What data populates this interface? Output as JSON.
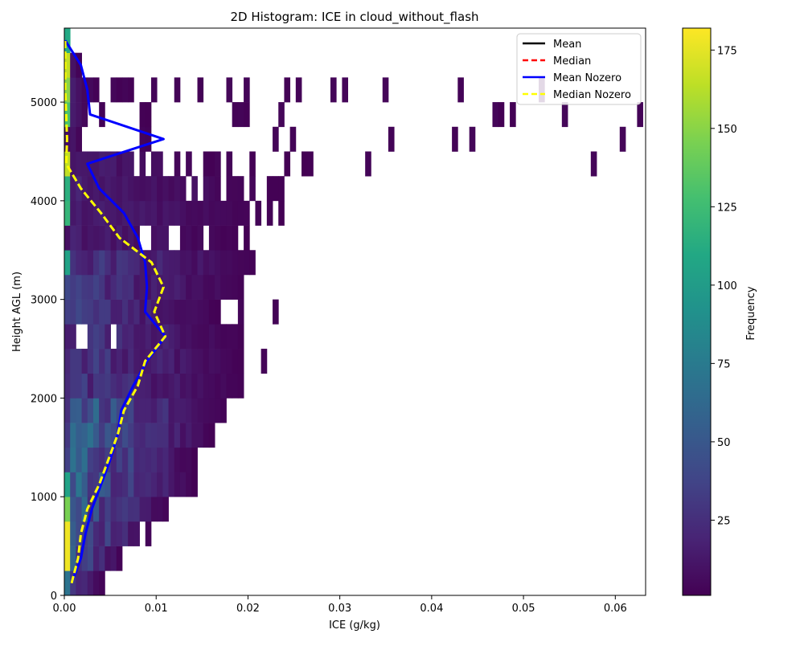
{
  "chart_data": {
    "type": "heatmap",
    "title": "2D Histogram: ICE in cloud_without_flash",
    "xlabel": "ICE (g/kg)",
    "ylabel": "Height AGL (m)",
    "xlim": [
      0,
      0.0633
    ],
    "ylim": [
      0,
      5750
    ],
    "x_ticks": [
      0,
      0.01,
      0.02,
      0.03,
      0.04,
      0.05,
      0.06
    ],
    "x_tick_labels": [
      "0.00",
      "0.01",
      "0.02",
      "0.03",
      "0.04",
      "0.05",
      "0.06"
    ],
    "y_ticks": [
      0,
      1000,
      2000,
      3000,
      4000,
      5000
    ],
    "y_tick_labels": [
      "0",
      "1000",
      "2000",
      "3000",
      "4000",
      "5000"
    ],
    "bin_width": 0.00063,
    "bin_height": 250,
    "colorbar": {
      "label": "Frequency",
      "colormap": "viridis",
      "range": [
        1,
        182
      ],
      "ticks": [
        25,
        50,
        75,
        100,
        125,
        150,
        175
      ],
      "tick_labels": [
        "25",
        "50",
        "75",
        "100",
        "125",
        "150",
        "175"
      ]
    },
    "legend": {
      "position": "upper right",
      "entries": [
        {
          "label": "Mean",
          "color": "#000000",
          "style": "solid"
        },
        {
          "label": "Median",
          "color": "#ff0000",
          "style": "dashed"
        },
        {
          "label": "Mean Nozero",
          "color": "#0000ff",
          "style": "solid"
        },
        {
          "label": "Median Nozero",
          "color": "#ffff00",
          "style": "dashed"
        }
      ]
    },
    "rows": [
      {
        "y0": 0,
        "y1": 250,
        "max_x": 0.0042,
        "first": 70
      },
      {
        "y0": 250,
        "y1": 500,
        "max_x": 0.0062,
        "first": 178
      },
      {
        "y0": 500,
        "y1": 750,
        "max_x": 0.0094,
        "first": 178,
        "gaps": [
          [
            0.0082,
            0.0088
          ]
        ]
      },
      {
        "y0": 750,
        "y1": 1000,
        "max_x": 0.0114,
        "first": 145
      },
      {
        "y0": 1000,
        "y1": 1250,
        "max_x": 0.0145,
        "first": 105
      },
      {
        "y0": 1250,
        "y1": 1500,
        "max_x": 0.0145,
        "first": 35
      },
      {
        "y0": 1500,
        "y1": 1750,
        "max_x": 0.0165,
        "first": 30
      },
      {
        "y0": 1750,
        "y1": 2000,
        "max_x": 0.0178,
        "first": 25
      },
      {
        "y0": 2000,
        "y1": 2250,
        "max_x": 0.0198,
        "first": 22
      },
      {
        "y0": 2250,
        "y1": 2500,
        "max_x": 0.0198,
        "first": 20,
        "extra": [
          [
            0.0216,
            0.0222
          ]
        ]
      },
      {
        "y0": 2500,
        "y1": 2750,
        "max_x": 0.0198,
        "first": 15,
        "gaps": [
          [
            0.0012,
            0.0025
          ],
          [
            0.005,
            0.0058
          ]
        ]
      },
      {
        "y0": 2750,
        "y1": 3000,
        "max_x": 0.0171,
        "first": 35,
        "extra": [
          [
            0.019,
            0.0196
          ],
          [
            0.0229,
            0.0235
          ]
        ]
      },
      {
        "y0": 3000,
        "y1": 3250,
        "max_x": 0.0198,
        "first": 40
      },
      {
        "y0": 3250,
        "y1": 3500,
        "max_x": 0.021,
        "first": 105
      },
      {
        "y0": 3500,
        "y1": 3750,
        "max_x": 0.0204,
        "first": 8,
        "gaps": [
          [
            0.0082,
            0.0094
          ],
          [
            0.0114,
            0.0127
          ],
          [
            0.0152,
            0.0158
          ],
          [
            0.019,
            0.0197
          ]
        ]
      },
      {
        "y0": 3750,
        "y1": 4000,
        "max_x": 0.0241,
        "first": 120,
        "gaps": [
          [
            0.0204,
            0.021
          ],
          [
            0.0216,
            0.0222
          ],
          [
            0.0229,
            0.0235
          ]
        ]
      },
      {
        "y0": 4000,
        "y1": 4250,
        "max_x": 0.0241,
        "first": 115,
        "gaps": [
          [
            0.0133,
            0.0139
          ],
          [
            0.0146,
            0.0152
          ],
          [
            0.0171,
            0.0177
          ],
          [
            0.0196,
            0.0203
          ],
          [
            0.021,
            0.0222
          ]
        ]
      },
      {
        "y0": 4250,
        "y1": 4500,
        "max_x": 0.0165,
        "first": 165,
        "gaps": [
          [
            0.0076,
            0.0082
          ],
          [
            0.0088,
            0.0095
          ],
          [
            0.0108,
            0.012
          ],
          [
            0.0127,
            0.0133
          ],
          [
            0.0139,
            0.0152
          ]
        ],
        "extra": [
          [
            0.0165,
            0.0171
          ],
          [
            0.0177,
            0.0184
          ],
          [
            0.0203,
            0.0209
          ],
          [
            0.0241,
            0.0247
          ],
          [
            0.026,
            0.0272
          ],
          [
            0.0329,
            0.0335
          ],
          [
            0.0576,
            0.0582
          ]
        ]
      },
      {
        "y0": 4500,
        "y1": 4750,
        "max_x": 0.0018,
        "first": 8,
        "extra": [
          [
            0.0082,
            0.0094
          ],
          [
            0.0229,
            0.0235
          ],
          [
            0.0247,
            0.0253
          ],
          [
            0.0355,
            0.0361
          ],
          [
            0.0424,
            0.043
          ],
          [
            0.0442,
            0.0448
          ],
          [
            0.0607,
            0.0613
          ]
        ]
      },
      {
        "y0": 4750,
        "y1": 5000,
        "max_x": 0.0043,
        "first": 130,
        "gaps": [
          [
            0.0025,
            0.0037
          ]
        ],
        "extra": [
          [
            0.0082,
            0.0094
          ],
          [
            0.0184,
            0.0203
          ],
          [
            0.0235,
            0.0241
          ],
          [
            0.0469,
            0.0481
          ],
          [
            0.0487,
            0.0493
          ],
          [
            0.0544,
            0.055
          ],
          [
            0.0626,
            0.0633
          ]
        ]
      },
      {
        "y0": 5000,
        "y1": 5250,
        "max_x": 0.0037,
        "first": 150,
        "extra": [
          [
            0.005,
            0.0075
          ],
          [
            0.0095,
            0.0101
          ],
          [
            0.012,
            0.0127
          ],
          [
            0.0146,
            0.0152
          ],
          [
            0.0177,
            0.0184
          ],
          [
            0.0197,
            0.0203
          ],
          [
            0.0241,
            0.0247
          ],
          [
            0.0254,
            0.026
          ],
          [
            0.0292,
            0.0298
          ],
          [
            0.0304,
            0.031
          ],
          [
            0.0349,
            0.0355
          ],
          [
            0.043,
            0.0436
          ],
          [
            0.0519,
            0.0525
          ]
        ]
      },
      {
        "y0": 5250,
        "y1": 5500,
        "max_x": 0.0018,
        "first": 165
      },
      {
        "y0": 5500,
        "y1": 5750,
        "max_x": 0.0006,
        "first": 110
      }
    ],
    "series": [
      {
        "name": "Mean Nozero",
        "color": "#0000ff",
        "style": "solid",
        "points": [
          [
            0.0008,
            125
          ],
          [
            0.0018,
            375
          ],
          [
            0.0023,
            625
          ],
          [
            0.003,
            875
          ],
          [
            0.004,
            1125
          ],
          [
            0.005,
            1375
          ],
          [
            0.0058,
            1625
          ],
          [
            0.0062,
            1875
          ],
          [
            0.0075,
            2125
          ],
          [
            0.009,
            2375
          ],
          [
            0.011,
            2625
          ],
          [
            0.0088,
            2875
          ],
          [
            0.009,
            3125
          ],
          [
            0.0088,
            3375
          ],
          [
            0.008,
            3625
          ],
          [
            0.0065,
            3875
          ],
          [
            0.0038,
            4125
          ],
          [
            0.0025,
            4375
          ],
          [
            0.0108,
            4625
          ],
          [
            0.0028,
            4875
          ],
          [
            0.0025,
            5125
          ],
          [
            0.0018,
            5375
          ],
          [
            0.0001,
            5625
          ]
        ]
      },
      {
        "name": "Median Nozero",
        "color": "#ffff00",
        "style": "dashed",
        "points": [
          [
            0.0008,
            125
          ],
          [
            0.0015,
            375
          ],
          [
            0.0018,
            625
          ],
          [
            0.0025,
            875
          ],
          [
            0.0038,
            1125
          ],
          [
            0.0048,
            1375
          ],
          [
            0.0058,
            1625
          ],
          [
            0.0065,
            1875
          ],
          [
            0.008,
            2125
          ],
          [
            0.0088,
            2375
          ],
          [
            0.011,
            2625
          ],
          [
            0.0098,
            2875
          ],
          [
            0.0108,
            3125
          ],
          [
            0.0095,
            3375
          ],
          [
            0.006,
            3625
          ],
          [
            0.004,
            3875
          ],
          [
            0.0018,
            4125
          ],
          [
            0.0002,
            4375
          ],
          [
            0.0003,
            4625
          ],
          [
            0.0002,
            4875
          ],
          [
            0.0001,
            5125
          ],
          [
            0.0001,
            5375
          ],
          [
            0.0001,
            5625
          ]
        ]
      }
    ]
  }
}
